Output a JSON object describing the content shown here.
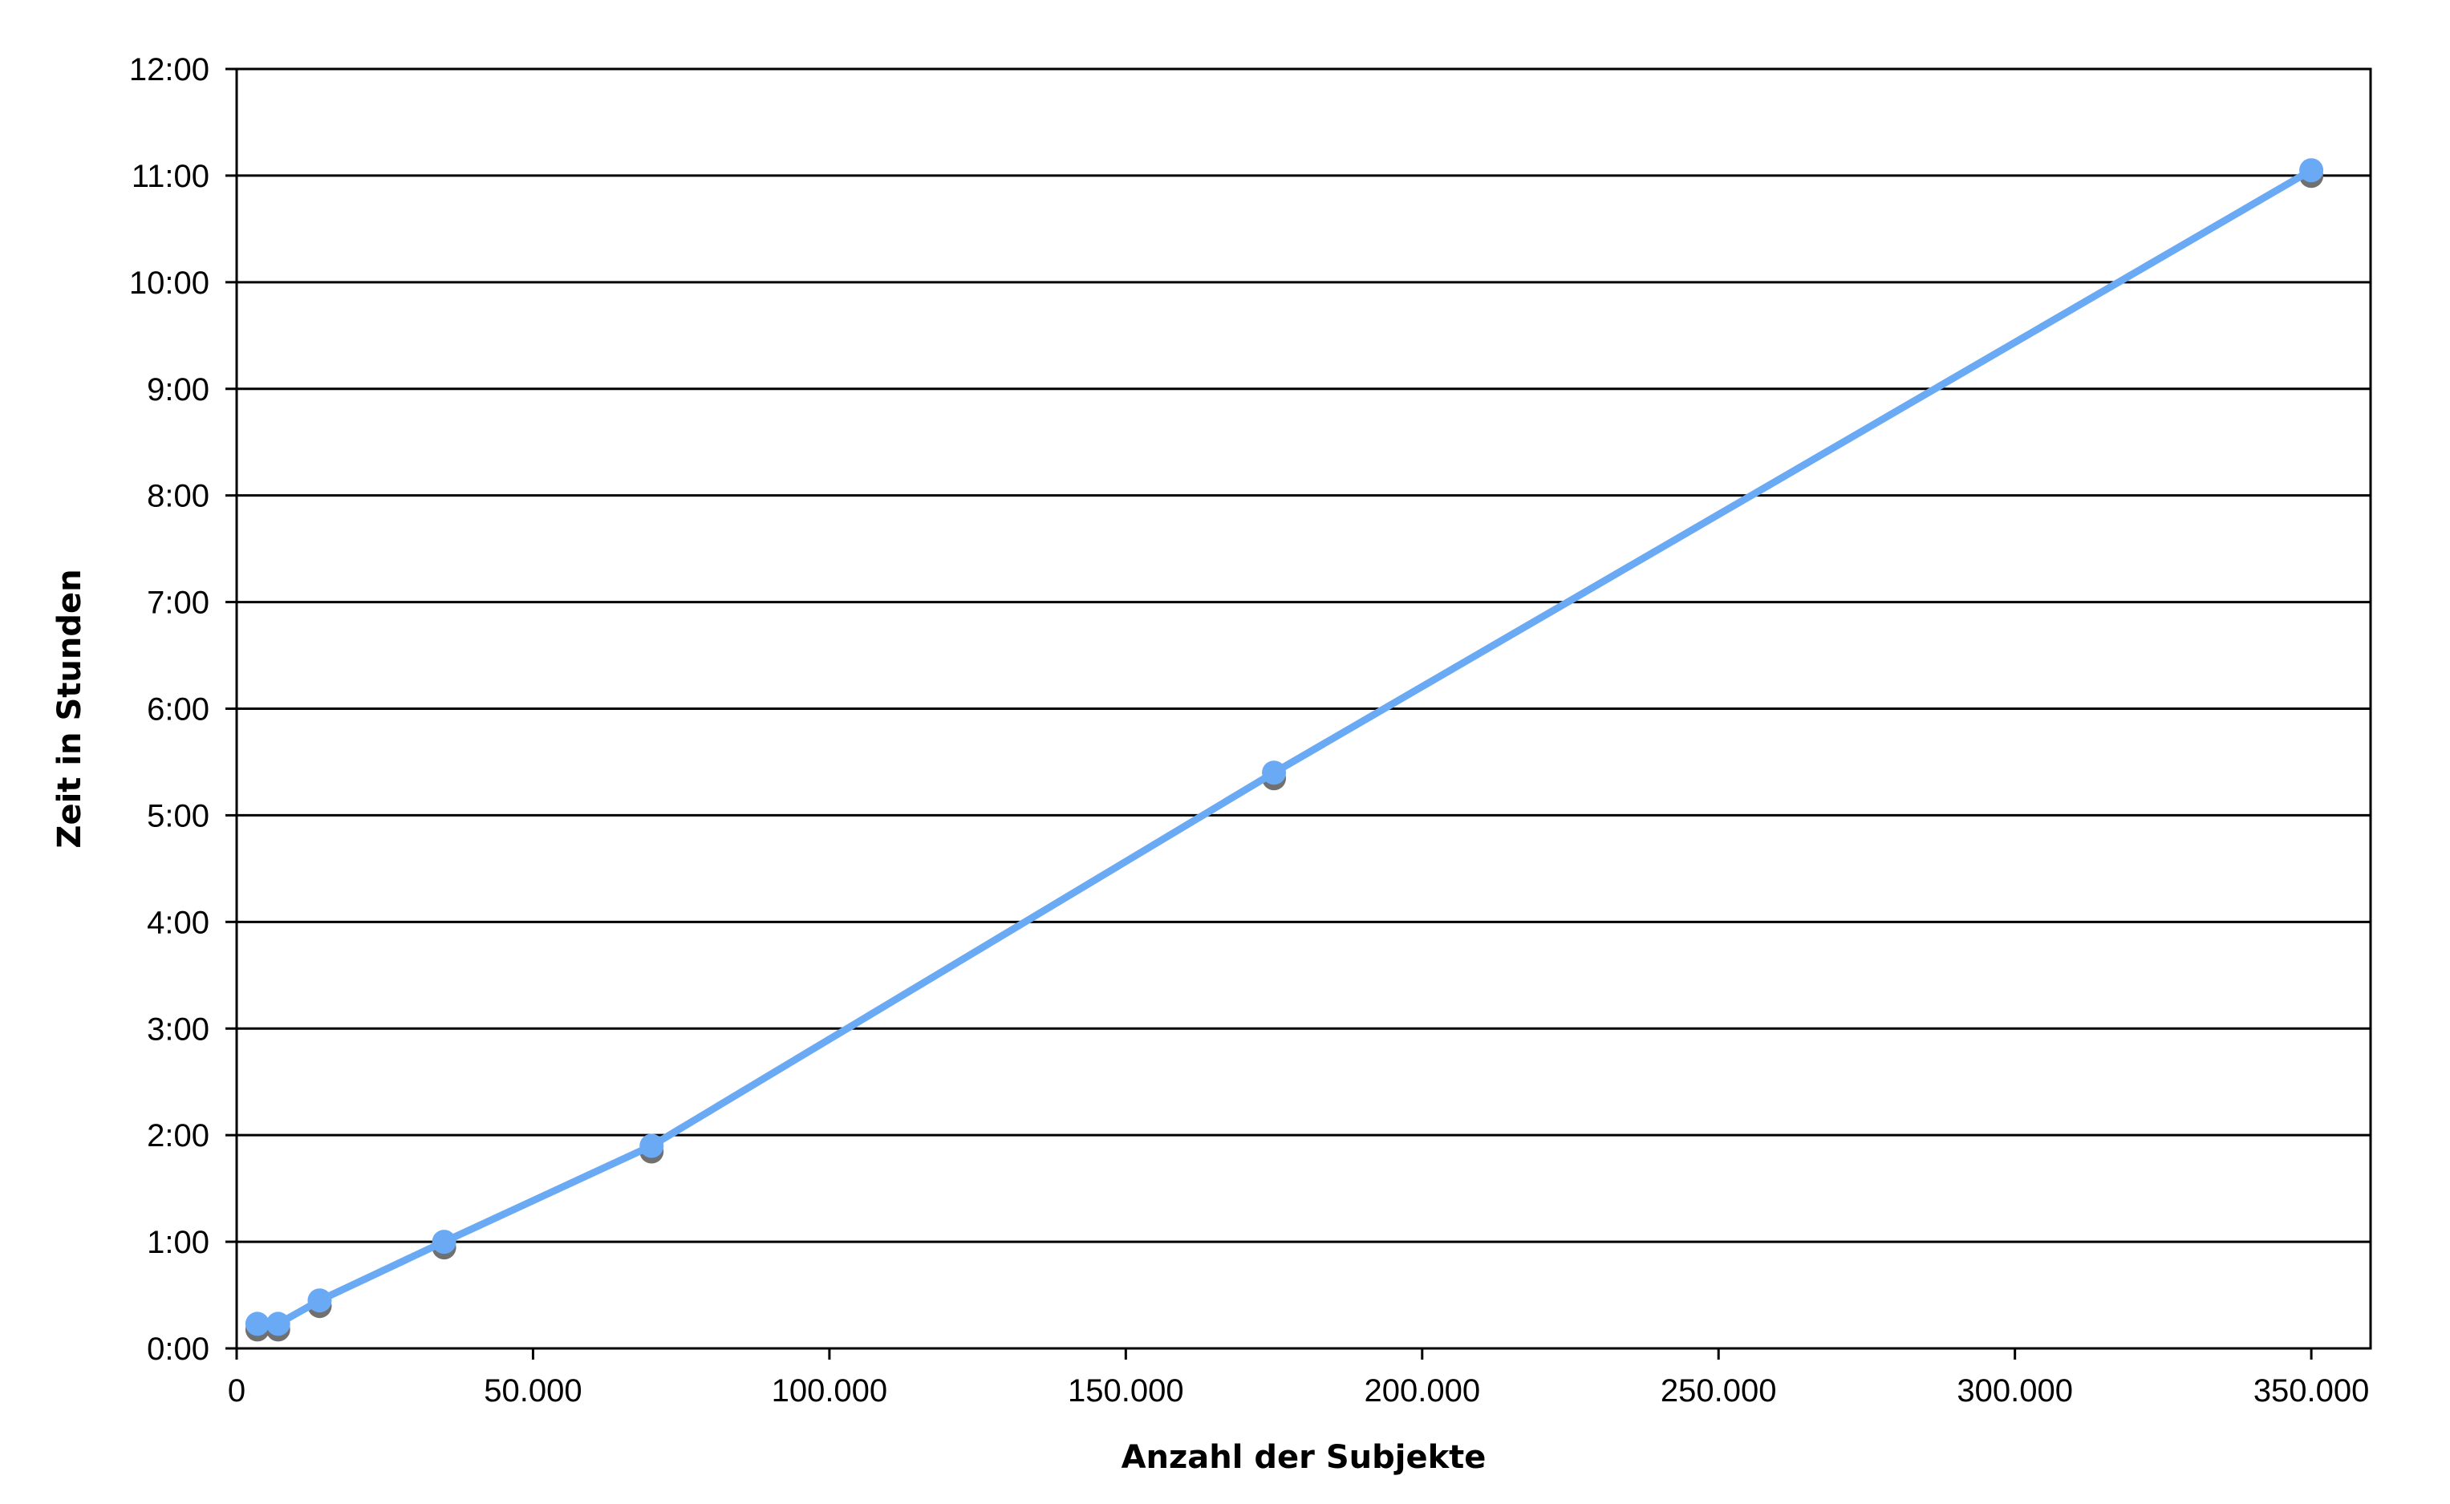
{
  "chart_data": {
    "type": "line",
    "title": "",
    "xlabel": "Anzahl der Subjekte",
    "ylabel": "Zeit in Stunden",
    "xlim": [
      0,
      360000
    ],
    "ylim": [
      0,
      12
    ],
    "x_ticks": [
      0,
      50000,
      100000,
      150000,
      200000,
      250000,
      300000,
      350000
    ],
    "x_tick_labels": [
      "0",
      "50.000",
      "100.000",
      "150.000",
      "200.000",
      "250.000",
      "300.000",
      "350.000"
    ],
    "y_ticks": [
      0,
      1,
      2,
      3,
      4,
      5,
      6,
      7,
      8,
      9,
      10,
      11,
      12
    ],
    "y_tick_labels": [
      "0:00",
      "1:00",
      "2:00",
      "3:00",
      "4:00",
      "5:00",
      "6:00",
      "7:00",
      "8:00",
      "9:00",
      "10:00",
      "11:00",
      "12:00"
    ],
    "grid": "horizontal",
    "legend": "none",
    "series": [
      {
        "x": [
          3500,
          7000,
          14000,
          35000,
          70000,
          175000,
          350000
        ],
        "y": [
          0.23,
          0.23,
          0.45,
          1.0,
          1.9,
          5.4,
          11.05
        ],
        "color": "#6aaaf5",
        "marker_shadow_color": "#707070"
      }
    ]
  }
}
